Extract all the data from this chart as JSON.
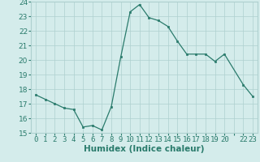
{
  "xlabel": "Humidex (Indice chaleur)",
  "x_values": [
    0,
    1,
    2,
    3,
    4,
    5,
    6,
    7,
    8,
    9,
    10,
    11,
    12,
    13,
    14,
    15,
    16,
    17,
    18,
    19,
    20,
    22,
    23
  ],
  "y_values": [
    17.6,
    17.3,
    17.0,
    16.7,
    16.6,
    15.4,
    15.5,
    15.2,
    16.8,
    20.2,
    23.3,
    23.8,
    22.9,
    22.7,
    22.3,
    21.3,
    20.4,
    20.4,
    20.4,
    19.9,
    20.4,
    18.3,
    17.5
  ],
  "line_color": "#2a7b6c",
  "marker": "s",
  "marker_size": 2,
  "background_color": "#d4eceb",
  "grid_color": "#aed0cf",
  "tick_color": "#2a7b6c",
  "label_color": "#2a7b6c",
  "ylim": [
    15,
    24
  ],
  "yticks": [
    15,
    16,
    17,
    18,
    19,
    20,
    21,
    22,
    23,
    24
  ],
  "xlim": [
    -0.5,
    23.5
  ],
  "font_size": 6.5
}
